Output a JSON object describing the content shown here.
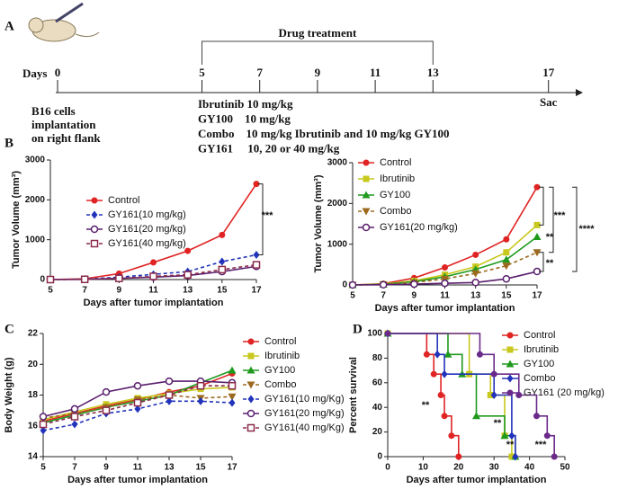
{
  "panels": [
    "A",
    "B",
    "C",
    "D"
  ],
  "timeline": {
    "days_label": "Days",
    "days": [
      0,
      5,
      7,
      9,
      11,
      13,
      17
    ],
    "bracket_label": "Drug treatment",
    "end_label": "Sac",
    "implant_lines": [
      "B16 cells",
      "implantation",
      "on right flank"
    ],
    "treatment_lines": [
      "Ibrutinib 10 mg/kg",
      "GY100    10 mg/kg",
      "Combo    10 mg/kg Ibrutinib and 10 mg/kg GY100",
      "GY161     10, 20 or 40 mg/kg"
    ]
  },
  "chart_data": [
    {
      "type": "line",
      "xlabel": "Days after tumor implantation",
      "ylabel": "Tumor Volume (mm³)",
      "x": [
        5,
        7,
        9,
        11,
        13,
        15,
        17
      ],
      "xlim": [
        5,
        17
      ],
      "xticks": [
        5,
        7,
        9,
        11,
        13,
        15,
        17
      ],
      "ylim": [
        0,
        3000
      ],
      "yticks": [
        0,
        1000,
        2000,
        3000
      ],
      "legend": "upper left",
      "annotations": [
        "***"
      ],
      "series": [
        {
          "name": "Control",
          "color": "#e02424",
          "marker": "circle",
          "dash": false,
          "values": [
            0,
            20,
            150,
            430,
            720,
            1120,
            2400
          ]
        },
        {
          "name": "GY161(10 mg/kg)",
          "color": "#2233bb",
          "marker": "diamond",
          "dash": true,
          "values": [
            0,
            10,
            60,
            130,
            200,
            450,
            620
          ]
        },
        {
          "name": "GY161(20 mg/kg)",
          "color": "#5a1f6e",
          "marker": "circle-open",
          "dash": false,
          "values": [
            0,
            5,
            30,
            60,
            100,
            200,
            330
          ]
        },
        {
          "name": "GY161(40 mg/kg)",
          "color": "#8a2a4a",
          "marker": "square-open",
          "dash": true,
          "values": [
            0,
            5,
            30,
            80,
            120,
            250,
            370
          ]
        }
      ]
    },
    {
      "type": "line",
      "xlabel": "Days after tumor implantation",
      "ylabel": "Tumor Volume (mm³)",
      "x": [
        5,
        7,
        9,
        11,
        13,
        15,
        17
      ],
      "xlim": [
        5,
        17
      ],
      "xticks": [
        5,
        7,
        9,
        11,
        13,
        15,
        17
      ],
      "ylim": [
        0,
        3000
      ],
      "yticks": [
        0,
        1000,
        2000,
        3000
      ],
      "legend": "upper left",
      "annotations": [
        "**",
        "***",
        "****",
        "**"
      ],
      "series": [
        {
          "name": "Control",
          "color": "#e02424",
          "marker": "circle",
          "dash": false,
          "values": [
            0,
            30,
            170,
            430,
            740,
            1120,
            2400
          ]
        },
        {
          "name": "Ibrutinib",
          "color": "#c8c81e",
          "marker": "square",
          "dash": false,
          "values": [
            0,
            20,
            100,
            250,
            450,
            800,
            1470
          ]
        },
        {
          "name": "GY100",
          "color": "#1f9a1f",
          "marker": "triangle",
          "dash": false,
          "values": [
            0,
            15,
            80,
            200,
            380,
            620,
            1180
          ]
        },
        {
          "name": "Combo",
          "color": "#9c6a1e",
          "marker": "triangle-down",
          "dash": true,
          "values": [
            0,
            10,
            60,
            150,
            280,
            470,
            800
          ]
        },
        {
          "name": "GY161(20 mg/kg)",
          "color": "#5a1f6e",
          "marker": "circle-open",
          "dash": false,
          "values": [
            0,
            5,
            20,
            40,
            60,
            150,
            330
          ]
        }
      ]
    },
    {
      "type": "line",
      "xlabel": "Days after tumor implantation",
      "ylabel": "Body Weight (g)",
      "x": [
        5,
        7,
        9,
        11,
        13,
        15,
        17
      ],
      "xlim": [
        5,
        17
      ],
      "xticks": [
        5,
        7,
        9,
        11,
        13,
        15,
        17
      ],
      "ylim": [
        14,
        22
      ],
      "yticks": [
        14,
        16,
        18,
        20,
        22
      ],
      "legend": "right",
      "annotations": [],
      "series": [
        {
          "name": "Control",
          "color": "#e02424",
          "marker": "circle",
          "dash": false,
          "values": [
            16.3,
            16.8,
            17.3,
            17.7,
            18.2,
            18.6,
            19.4
          ]
        },
        {
          "name": "Ibrutinib",
          "color": "#c8c81e",
          "marker": "square",
          "dash": false,
          "values": [
            16.4,
            16.9,
            17.4,
            17.8,
            18.1,
            18.4,
            18.5
          ]
        },
        {
          "name": "GY100",
          "color": "#1f9a1f",
          "marker": "triangle",
          "dash": false,
          "values": [
            16.2,
            16.7,
            17.2,
            17.6,
            18.0,
            18.8,
            19.6
          ]
        },
        {
          "name": "Combo",
          "color": "#9c6a1e",
          "marker": "triangle-down",
          "dash": true,
          "values": [
            16.5,
            16.8,
            17.2,
            17.7,
            18.0,
            17.8,
            17.9
          ]
        },
        {
          "name": "GY161(10 mg/Kg)",
          "color": "#2233bb",
          "marker": "diamond",
          "dash": true,
          "values": [
            15.7,
            16.1,
            16.8,
            17.1,
            17.6,
            17.6,
            17.5
          ]
        },
        {
          "name": "GY161(20 mg/Kg)",
          "color": "#5a1f6e",
          "marker": "circle-open",
          "dash": false,
          "values": [
            16.6,
            17.1,
            18.2,
            18.6,
            18.9,
            18.9,
            18.8
          ]
        },
        {
          "name": "GY161(40 mg/Kg)",
          "color": "#8a2a4a",
          "marker": "square-open",
          "dash": true,
          "values": [
            16.1,
            16.6,
            17.0,
            17.5,
            18.0,
            18.6,
            18.6
          ]
        }
      ]
    },
    {
      "type": "step",
      "xlabel": "Days after tumor implantation",
      "ylabel": "Percent survival",
      "xlim": [
        0,
        50
      ],
      "xticks": [
        0,
        10,
        20,
        30,
        40,
        50
      ],
      "ylim": [
        0,
        100
      ],
      "yticks": [
        0,
        20,
        40,
        60,
        80,
        100
      ],
      "legend": "upper right",
      "annotations": [
        "**",
        "**",
        "**",
        "***"
      ],
      "series": [
        {
          "name": "Control",
          "color": "#e02424",
          "marker": "circle",
          "x": [
            0,
            11,
            13,
            15,
            16,
            18,
            20
          ],
          "values": [
            100,
            83,
            67,
            50,
            33,
            17,
            0
          ]
        },
        {
          "name": "Ibrutinib",
          "color": "#c8c81e",
          "marker": "square",
          "x": [
            0,
            23,
            29,
            33,
            35
          ],
          "values": [
            100,
            67,
            50,
            17,
            0
          ]
        },
        {
          "name": "GY100",
          "color": "#1f9a1f",
          "marker": "triangle",
          "x": [
            0,
            17,
            21,
            25,
            33,
            36
          ],
          "values": [
            100,
            83,
            67,
            33,
            17,
            0
          ]
        },
        {
          "name": "Combo",
          "color": "#2233bb",
          "marker": "diamond",
          "x": [
            0,
            14,
            16,
            30,
            35,
            36
          ],
          "values": [
            100,
            83,
            67,
            50,
            17,
            0
          ]
        },
        {
          "name": "GY161 (20 mg/kg)",
          "color": "#6a2a8a",
          "marker": "circle",
          "x": [
            0,
            26,
            30,
            37,
            42,
            45,
            47
          ],
          "values": [
            100,
            83,
            67,
            50,
            33,
            17,
            0
          ]
        }
      ]
    }
  ]
}
